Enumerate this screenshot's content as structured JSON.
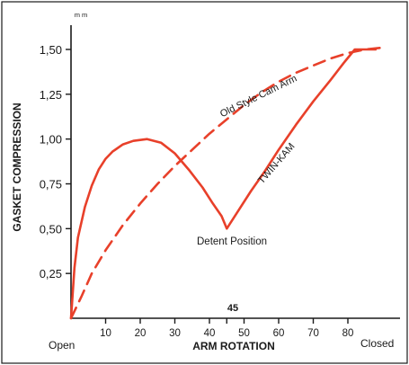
{
  "chart_data": {
    "type": "line",
    "xlabel": "ARM ROTATION",
    "ylabel": "GASKET COMPRESSION",
    "y_unit": "m m",
    "xlim": [
      0,
      90
    ],
    "ylim": [
      0,
      1.6
    ],
    "x_ticks": [
      10,
      20,
      30,
      40,
      50,
      60,
      70,
      80
    ],
    "x_tick_labels": [
      "10",
      "20",
      "30",
      "40",
      "50",
      "60",
      "70",
      "80"
    ],
    "x_start_label": "Open",
    "x_end_label": "Closed",
    "x_highlight_tick": {
      "x": 45,
      "label": "45"
    },
    "y_ticks": [
      0.25,
      0.5,
      0.75,
      1.0,
      1.25,
      1.5
    ],
    "y_tick_labels": [
      "0,25",
      "0,50",
      "0,75",
      "1,00",
      "1,25",
      "1,50"
    ],
    "grid": false,
    "series": [
      {
        "name": "TWIN-KAM",
        "style": "solid",
        "color": "#e8402a",
        "points": [
          [
            0,
            0
          ],
          [
            1,
            0.28
          ],
          [
            2,
            0.45
          ],
          [
            4,
            0.62
          ],
          [
            6,
            0.74
          ],
          [
            8,
            0.83
          ],
          [
            10,
            0.89
          ],
          [
            12,
            0.93
          ],
          [
            15,
            0.97
          ],
          [
            18,
            0.99
          ],
          [
            22,
            1.0
          ],
          [
            26,
            0.98
          ],
          [
            30,
            0.92
          ],
          [
            34,
            0.83
          ],
          [
            38,
            0.73
          ],
          [
            41,
            0.64
          ],
          [
            43.5,
            0.57
          ],
          [
            45,
            0.5
          ],
          [
            48,
            0.59
          ],
          [
            52,
            0.71
          ],
          [
            56,
            0.82
          ],
          [
            60,
            0.94
          ],
          [
            65,
            1.08
          ],
          [
            70,
            1.21
          ],
          [
            75,
            1.33
          ],
          [
            79,
            1.43
          ],
          [
            82,
            1.5
          ],
          [
            88,
            1.5
          ]
        ]
      },
      {
        "name": "Old Style Cam Arm",
        "style": "dashed",
        "color": "#e8402a",
        "points": [
          [
            0,
            0
          ],
          [
            3,
            0.12
          ],
          [
            6,
            0.25
          ],
          [
            10,
            0.38
          ],
          [
            15,
            0.52
          ],
          [
            20,
            0.64
          ],
          [
            25,
            0.75
          ],
          [
            30,
            0.85
          ],
          [
            35,
            0.94
          ],
          [
            40,
            1.03
          ],
          [
            45,
            1.11
          ],
          [
            50,
            1.19
          ],
          [
            55,
            1.26
          ],
          [
            60,
            1.32
          ],
          [
            65,
            1.37
          ],
          [
            70,
            1.41
          ],
          [
            75,
            1.45
          ],
          [
            80,
            1.48
          ],
          [
            85,
            1.5
          ],
          [
            90,
            1.51
          ]
        ]
      }
    ],
    "annotations": [
      {
        "text": "Detent Position",
        "x": 45,
        "y": 0.5
      },
      {
        "text": "TWIN-KAM",
        "series": "TWIN-KAM"
      },
      {
        "text": "Old Style Cam Arm",
        "series": "Old Style Cam Arm"
      }
    ]
  }
}
